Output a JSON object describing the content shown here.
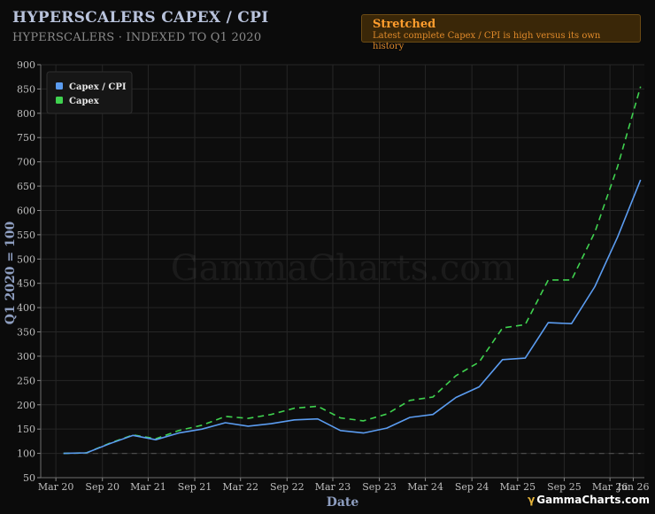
{
  "header": {
    "title": "HYPERSCALERS CAPEX / CPI",
    "subtitle": "HYPERSCALERS · INDEXED TO Q1 2020"
  },
  "status": {
    "title": "Stretched",
    "description": "Latest complete Capex / CPI is high versus its own history"
  },
  "watermark": "GammaCharts.com",
  "brand": {
    "symbol": "γ",
    "text": "GammaCharts.com"
  },
  "colors": {
    "background": "#0b0b0b",
    "capex_cpi": "#5b9cf0",
    "capex": "#3fd24f",
    "accent_orange": "#ff9d2e"
  },
  "chart_data": {
    "type": "line",
    "xlabel": "Date",
    "ylabel": "Q1 2020 = 100",
    "x_ticks": [
      "Mar 20",
      "Sep 20",
      "Mar 21",
      "Sep 21",
      "Mar 22",
      "Sep 22",
      "Mar 23",
      "Sep 23",
      "Mar 24",
      "Sep 24",
      "Mar 25",
      "Sep 25",
      "Mar 26",
      "Jun 26"
    ],
    "y_ticks": [
      50,
      100,
      150,
      200,
      250,
      300,
      350,
      400,
      450,
      500,
      550,
      600,
      650,
      700,
      750,
      800,
      850,
      900
    ],
    "ylim": [
      50,
      900
    ],
    "xlim": [
      "2020-01-01",
      "2026-07-15"
    ],
    "grid": true,
    "legend": "top-left",
    "baseline": 100,
    "x": [
      "2020-03-31",
      "2020-06-30",
      "2020-09-30",
      "2020-12-31",
      "2021-03-31",
      "2021-06-30",
      "2021-09-30",
      "2021-12-31",
      "2022-03-31",
      "2022-06-30",
      "2022-09-30",
      "2022-12-31",
      "2023-03-31",
      "2023-06-30",
      "2023-09-30",
      "2023-12-31",
      "2024-03-31",
      "2024-06-30",
      "2024-09-30",
      "2024-12-31",
      "2025-03-31",
      "2025-06-30",
      "2025-09-30",
      "2025-12-31",
      "2026-03-31",
      "2026-06-30"
    ],
    "series": [
      {
        "name": "Capex / CPI",
        "style": "solid",
        "values": [
          100,
          101,
          120,
          137,
          128,
          142,
          150,
          163,
          156,
          161,
          169,
          171,
          147,
          142,
          152,
          174,
          180,
          215,
          237,
          293,
          296,
          369,
          367,
          443,
          545,
          663
        ]
      },
      {
        "name": "Capex",
        "style": "dashed",
        "values": [
          100,
          101,
          121,
          138,
          130,
          147,
          158,
          176,
          172,
          180,
          193,
          197,
          173,
          167,
          181,
          209,
          216,
          260,
          288,
          358,
          365,
          457,
          457,
          555,
          690,
          855
        ]
      }
    ]
  }
}
